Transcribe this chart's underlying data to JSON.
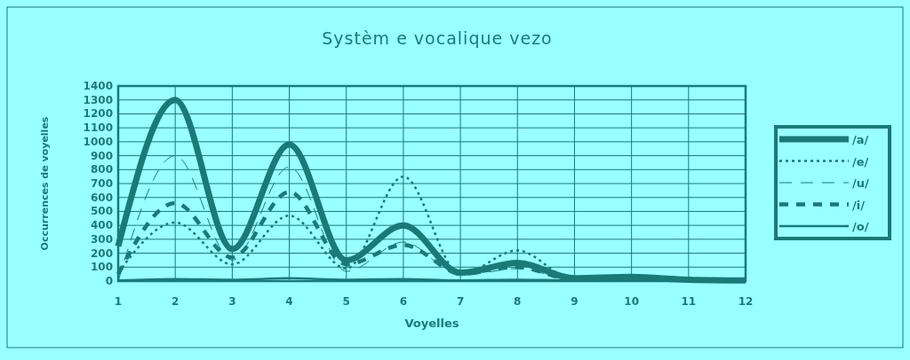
{
  "chart_data": {
    "type": "line",
    "title": "Systèm e vocalique vezo",
    "xlabel": "Voyelles",
    "ylabel": "Occurrences de voyelles",
    "x": [
      1,
      2,
      3,
      4,
      5,
      6,
      7,
      8,
      9,
      10,
      11,
      12
    ],
    "xlim": [
      1,
      12
    ],
    "xticks": [
      1,
      2,
      3,
      4,
      5,
      6,
      7,
      8,
      9,
      10,
      11,
      12
    ],
    "ylim": [
      0,
      1400
    ],
    "yticks": [
      0,
      100,
      200,
      300,
      400,
      500,
      600,
      700,
      800,
      900,
      1000,
      1100,
      1200,
      1300,
      1400
    ],
    "grid": true,
    "legend": "right",
    "series": [
      {
        "name": "/a/",
        "color": "#1a7a78",
        "line_style": "solid",
        "values": [
          250,
          1300,
          230,
          980,
          150,
          400,
          60,
          130,
          20,
          30,
          10,
          5
        ]
      },
      {
        "name": "/e/",
        "color": "#1a7a78",
        "line_style": "dotted",
        "values": [
          60,
          420,
          120,
          470,
          90,
          750,
          50,
          220,
          10,
          20,
          10,
          5
        ]
      },
      {
        "name": "/u/",
        "color": "#1a7a78",
        "line_style": "dashed",
        "values": [
          0,
          900,
          150,
          820,
          70,
          280,
          40,
          90,
          10,
          20,
          10,
          5
        ]
      },
      {
        "name": "/i/",
        "color": "#1a7a78",
        "line_style": "dashed",
        "values": [
          50,
          560,
          170,
          640,
          120,
          260,
          60,
          100,
          10,
          20,
          10,
          5
        ]
      },
      {
        "name": "/o/",
        "color": "#1a7a78",
        "line_style": "solid",
        "values": [
          5,
          15,
          10,
          20,
          10,
          15,
          5,
          10,
          5,
          10,
          5,
          0
        ]
      }
    ]
  }
}
